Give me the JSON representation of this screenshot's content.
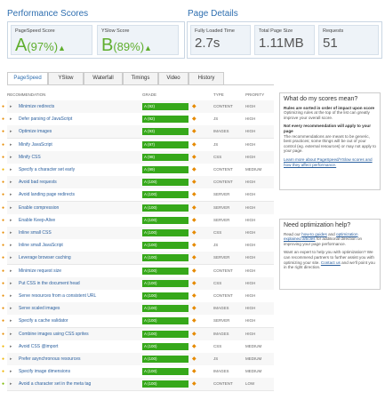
{
  "header": {
    "performance_title": "Performance Scores",
    "details_title": "Page Details"
  },
  "scores": [
    {
      "label": "PageSpeed Score",
      "grade": "A",
      "percent": "(97%)"
    },
    {
      "label": "YSlow Score",
      "grade": "B",
      "percent": "(89%)"
    }
  ],
  "details": [
    {
      "label": "Fully Loaded Time",
      "value": "2.7s"
    },
    {
      "label": "Total Page Size",
      "value": "1.11MB"
    },
    {
      "label": "Requests",
      "value": "51"
    }
  ],
  "tabs": [
    "PageSpeed",
    "YSlow",
    "Waterfall",
    "Timings",
    "Video",
    "History"
  ],
  "table": {
    "columns": [
      "RECOMMENDATION",
      "GRADE",
      "TYPE",
      "PRIORITY"
    ],
    "rows": [
      [
        "Minimize redirects",
        "A (92)",
        "CONTENT",
        "HIGH"
      ],
      [
        "Defer parsing of JavaScript",
        "A (92)",
        "JS",
        "HIGH"
      ],
      [
        "Optimize images",
        "A (93)",
        "IMAGES",
        "HIGH"
      ],
      [
        "Minify JavaScript",
        "A (97)",
        "JS",
        "HIGH"
      ],
      [
        "Minify CSS",
        "A (98)",
        "CSS",
        "HIGH"
      ],
      [
        "Specify a character set early",
        "A (99)",
        "CONTENT",
        "MEDIUM"
      ],
      [
        "Avoid bad requests",
        "A (100)",
        "CONTENT",
        "HIGH"
      ],
      [
        "Avoid landing page redirects",
        "A (100)",
        "SERVER",
        "HIGH"
      ],
      [
        "Enable compression",
        "A (100)",
        "SERVER",
        "HIGH"
      ],
      [
        "Enable Keep-Alive",
        "A (100)",
        "SERVER",
        "HIGH"
      ],
      [
        "Inline small CSS",
        "A (100)",
        "CSS",
        "HIGH"
      ],
      [
        "Inline small JavaScript",
        "A (100)",
        "JS",
        "HIGH"
      ],
      [
        "Leverage browser caching",
        "A (100)",
        "SERVER",
        "HIGH"
      ],
      [
        "Minimize request size",
        "A (100)",
        "CONTENT",
        "HIGH"
      ],
      [
        "Put CSS in the document head",
        "A (100)",
        "CSS",
        "HIGH"
      ],
      [
        "Serve resources from a consistent URL",
        "A (100)",
        "CONTENT",
        "HIGH"
      ],
      [
        "Serve scaled images",
        "A (100)",
        "IMAGES",
        "HIGH"
      ],
      [
        "Specify a cache validator",
        "A (100)",
        "SERVER",
        "HIGH"
      ],
      [
        "Combine images using CSS sprites",
        "A (100)",
        "IMAGES",
        "HIGH"
      ],
      [
        "Avoid CSS @import",
        "A (100)",
        "CSS",
        "MEDIUM"
      ],
      [
        "Prefer asynchronous resources",
        "A (100)",
        "JS",
        "MEDIUM"
      ],
      [
        "Specify image dimensions",
        "A (100)",
        "IMAGES",
        "MEDIUM"
      ],
      [
        "Avoid a character set in the meta tag",
        "A (100)",
        "CONTENT",
        "LOW"
      ]
    ]
  },
  "sidebar": {
    "scores_title": "What do my scores mean?",
    "scores_paragraphs": [
      {
        "bold": "Rules are sorted in order of impact upon score",
        "text": "Optimizing rules at the top of the list can greatly improve your overall score."
      },
      {
        "bold": "Not every recommendation will apply to your page",
        "text": "The recommendations are meant to be generic, best practices; some things will be out of your control (eg. external resources) or may not apply to your page."
      }
    ],
    "learn_more": "Learn more about PageSpeed/YSlow scores and how they affect performance.",
    "help_title": "Need optimization help?",
    "help_paragraphs": [
      [
        "Read our ",
        "how-to guides",
        " and ",
        "optimization explained articles",
        " for additional direction on improving your page performance."
      ],
      [
        "Want an expert to help you with optimization? We can recommend partners to further assist you with optimizing your site. ",
        "Contact us",
        " and we'll point you in the right direction."
      ]
    ]
  }
}
